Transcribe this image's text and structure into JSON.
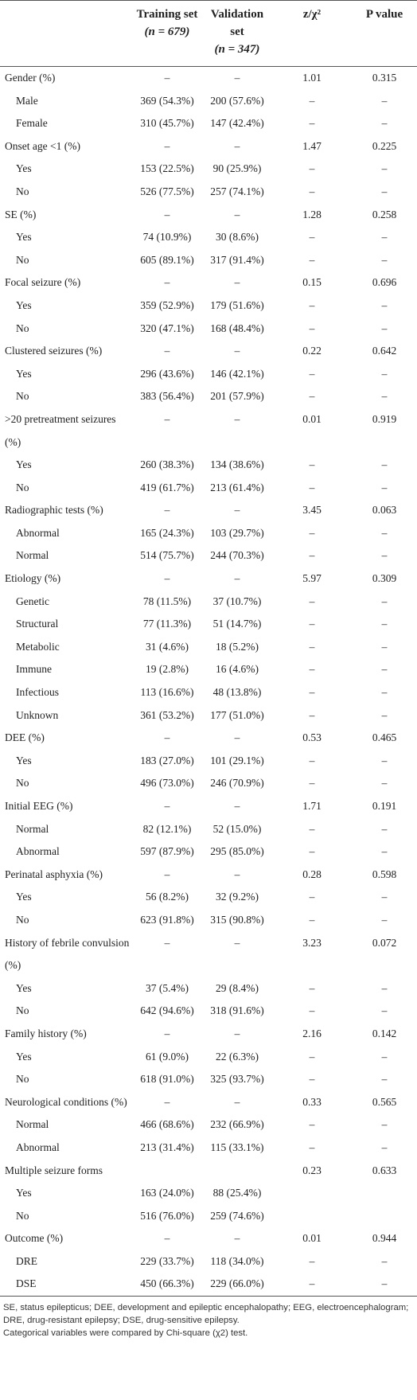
{
  "header": {
    "columns": [
      {
        "title": "Training set",
        "n": "(n = 679)"
      },
      {
        "title": "Validation set",
        "n": "(n = 347)"
      },
      {
        "title": "z/χ²"
      },
      {
        "title": "P value"
      }
    ]
  },
  "groups": [
    {
      "row": [
        "Gender (%)",
        "–",
        "–",
        "1.01",
        "0.315"
      ],
      "items": [
        [
          "Male",
          "369 (54.3%)",
          "200 (57.6%)",
          "–",
          "–"
        ],
        [
          "Female",
          "310 (45.7%)",
          "147 (42.4%)",
          "–",
          "–"
        ]
      ]
    },
    {
      "row": [
        "Onset age <1 (%)",
        "–",
        "–",
        "1.47",
        "0.225"
      ],
      "items": [
        [
          "Yes",
          "153 (22.5%)",
          "90 (25.9%)",
          "–",
          "–"
        ],
        [
          "No",
          "526 (77.5%)",
          "257 (74.1%)",
          "–",
          "–"
        ]
      ]
    },
    {
      "row": [
        "SE (%)",
        "–",
        "–",
        "1.28",
        "0.258"
      ],
      "items": [
        [
          "Yes",
          "74 (10.9%)",
          "30 (8.6%)",
          "–",
          "–"
        ],
        [
          "No",
          "605 (89.1%)",
          "317 (91.4%)",
          "–",
          "–"
        ]
      ]
    },
    {
      "row": [
        "Focal seizure (%)",
        "–",
        "–",
        "0.15",
        "0.696"
      ],
      "items": [
        [
          "Yes",
          "359 (52.9%)",
          "179 (51.6%)",
          "–",
          "–"
        ],
        [
          "No",
          "320 (47.1%)",
          "168 (48.4%)",
          "–",
          "–"
        ]
      ]
    },
    {
      "row": [
        "Clustered seizures (%)",
        "–",
        "–",
        "0.22",
        "0.642"
      ],
      "items": [
        [
          "Yes",
          "296 (43.6%)",
          "146 (42.1%)",
          "–",
          "–"
        ],
        [
          "No",
          "383 (56.4%)",
          "201 (57.9%)",
          "–",
          "–"
        ]
      ]
    },
    {
      "row": [
        ">20 pretreatment seizures (%)",
        "–",
        "–",
        "0.01",
        "0.919"
      ],
      "items": [
        [
          "Yes",
          "260 (38.3%)",
          "134 (38.6%)",
          "–",
          "–"
        ],
        [
          "No",
          "419 (61.7%)",
          "213 (61.4%)",
          "–",
          "–"
        ]
      ]
    },
    {
      "row": [
        "Radiographic tests (%)",
        "–",
        "–",
        "3.45",
        "0.063"
      ],
      "items": [
        [
          "Abnormal",
          "165 (24.3%)",
          "103 (29.7%)",
          "–",
          "–"
        ],
        [
          "Normal",
          "514 (75.7%)",
          "244 (70.3%)",
          "–",
          "–"
        ]
      ]
    },
    {
      "row": [
        "Etiology (%)",
        "–",
        "–",
        "5.97",
        "0.309"
      ],
      "items": [
        [
          "Genetic",
          "78 (11.5%)",
          "37 (10.7%)",
          "–",
          "–"
        ],
        [
          "Structural",
          "77 (11.3%)",
          "51 (14.7%)",
          "–",
          "–"
        ],
        [
          "Metabolic",
          "31 (4.6%)",
          "18 (5.2%)",
          "–",
          "–"
        ],
        [
          "Immune",
          "19 (2.8%)",
          "16 (4.6%)",
          "–",
          "–"
        ],
        [
          "Infectious",
          "113 (16.6%)",
          "48 (13.8%)",
          "–",
          "–"
        ],
        [
          "Unknown",
          "361 (53.2%)",
          "177 (51.0%)",
          "–",
          "–"
        ]
      ]
    },
    {
      "row": [
        "DEE (%)",
        "–",
        "–",
        "0.53",
        "0.465"
      ],
      "items": [
        [
          "Yes",
          "183 (27.0%)",
          "101 (29.1%)",
          "–",
          "–"
        ],
        [
          "No",
          "496 (73.0%)",
          "246 (70.9%)",
          "–",
          "–"
        ]
      ]
    },
    {
      "row": [
        "Initial EEG (%)",
        "–",
        "–",
        "1.71",
        "0.191"
      ],
      "items": [
        [
          "Normal",
          "82 (12.1%)",
          "52 (15.0%)",
          "–",
          "–"
        ],
        [
          "Abnormal",
          "597 (87.9%)",
          "295 (85.0%)",
          "–",
          "–"
        ]
      ]
    },
    {
      "row": [
        "Perinatal asphyxia (%)",
        "–",
        "–",
        "0.28",
        "0.598"
      ],
      "items": [
        [
          "Yes",
          "56 (8.2%)",
          "32 (9.2%)",
          "–",
          "–"
        ],
        [
          "No",
          "623 (91.8%)",
          "315 (90.8%)",
          "–",
          "–"
        ]
      ]
    },
    {
      "row": [
        "History of febrile convulsion (%)",
        "–",
        "–",
        "3.23",
        "0.072"
      ],
      "items": [
        [
          "Yes",
          "37 (5.4%)",
          "29 (8.4%)",
          "–",
          "–"
        ],
        [
          "No",
          "642 (94.6%)",
          "318 (91.6%)",
          "–",
          "–"
        ]
      ]
    },
    {
      "row": [
        "Family history (%)",
        "–",
        "–",
        "2.16",
        "0.142"
      ],
      "items": [
        [
          "Yes",
          "61 (9.0%)",
          "22 (6.3%)",
          "–",
          "–"
        ],
        [
          "No",
          "618 (91.0%)",
          "325 (93.7%)",
          "–",
          "–"
        ]
      ]
    },
    {
      "row": [
        "Neurological conditions (%)",
        "–",
        "–",
        "0.33",
        "0.565"
      ],
      "items": [
        [
          "Normal",
          "466 (68.6%)",
          "232 (66.9%)",
          "–",
          "–"
        ],
        [
          "Abnormal",
          "213 (31.4%)",
          "115 (33.1%)",
          "–",
          "–"
        ]
      ]
    },
    {
      "row": [
        "Multiple seizure forms",
        null,
        null,
        "0.23",
        "0.633"
      ],
      "items": [
        [
          "Yes",
          "163 (24.0%)",
          "88 (25.4%)",
          null,
          null
        ],
        [
          "No",
          "516 (76.0%)",
          "259 (74.6%)",
          null,
          null
        ]
      ]
    },
    {
      "row": [
        "Outcome (%)",
        "–",
        "–",
        "0.01",
        "0.944"
      ],
      "items": [
        [
          "DRE",
          "229 (33.7%)",
          "118 (34.0%)",
          "–",
          "–"
        ],
        [
          "DSE",
          "450 (66.3%)",
          "229 (66.0%)",
          "–",
          "–"
        ]
      ]
    }
  ],
  "footnotes": [
    "SE, status epilepticus; DEE, development and epileptic encephalopathy; EEG, electroencephalogram; DRE, drug-resistant epilepsy; DSE, drug-sensitive epilepsy.",
    "Categorical variables were compared by Chi-square (χ2) test."
  ]
}
